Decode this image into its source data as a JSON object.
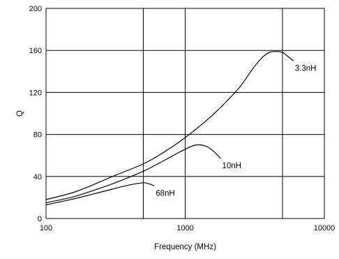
{
  "chart_data": {
    "type": "line",
    "title": "",
    "xlabel": "Frequency (MHz)",
    "ylabel": "Q",
    "xscale": "log",
    "xlim": [
      100,
      10000
    ],
    "ylim": [
      0,
      200
    ],
    "xticks": [
      100,
      1000,
      10000
    ],
    "xtick_labels": [
      "100",
      "1000",
      "10000"
    ],
    "yticks": [
      0,
      40,
      80,
      120,
      160,
      200
    ],
    "ytick_labels": [
      "0",
      "40",
      "80",
      "120",
      "160",
      "200"
    ],
    "grid": true,
    "legend": "none",
    "line_color": "#000000",
    "series": [
      {
        "name": "3.3nH",
        "x": [
          100,
          150,
          200,
          300,
          500,
          700,
          1000,
          1500,
          2000,
          2500,
          3000,
          3500,
          4000,
          4500,
          5000,
          5500,
          6000
        ],
        "y": [
          18,
          24,
          30,
          40,
          52,
          63,
          77,
          96,
          112,
          126,
          141,
          152,
          158,
          159,
          158,
          154,
          150
        ]
      },
      {
        "name": "10nH",
        "x": [
          100,
          150,
          200,
          300,
          500,
          700,
          1000,
          1200,
          1400,
          1600,
          1800
        ],
        "y": [
          15,
          20,
          25,
          33,
          45,
          55,
          66,
          70,
          69,
          64,
          57
        ]
      },
      {
        "name": "68nH",
        "x": [
          100,
          150,
          200,
          300,
          400,
          500,
          550,
          600
        ],
        "y": [
          13,
          18,
          22,
          28,
          32,
          34,
          33,
          31
        ]
      }
    ]
  }
}
